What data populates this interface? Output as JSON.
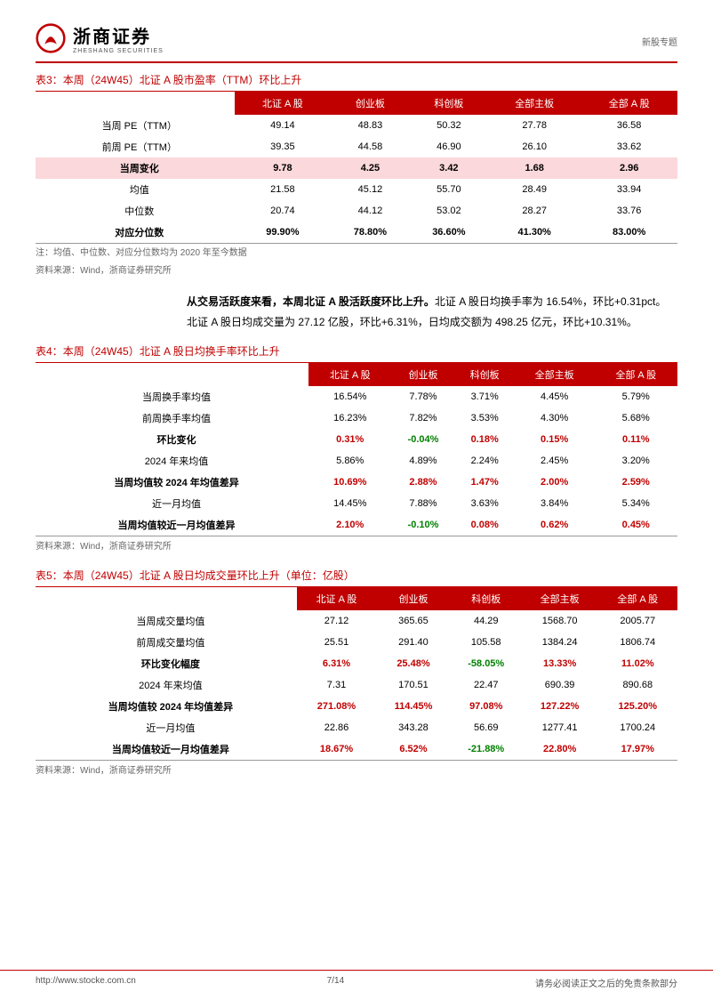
{
  "header": {
    "brand_cn": "浙商证券",
    "brand_en": "ZHESHANG SECURITIES",
    "topic": "新股专题",
    "brand_color": "#c00000"
  },
  "columns": [
    "北证 A 股",
    "创业板",
    "科创板",
    "全部主板",
    "全部 A 股"
  ],
  "table3": {
    "title_prefix": "表3：",
    "title": "本周（24W45）北证 A 股市盈率（TTM）环比上升",
    "rows": [
      {
        "label": "当周 PE（TTM）",
        "vals": [
          "49.14",
          "48.83",
          "50.32",
          "27.78",
          "36.58"
        ]
      },
      {
        "label": "前周 PE（TTM）",
        "vals": [
          "39.35",
          "44.58",
          "46.90",
          "26.10",
          "33.62"
        ]
      },
      {
        "label": "当周变化",
        "vals": [
          "9.78",
          "4.25",
          "3.42",
          "1.68",
          "2.96"
        ],
        "highlight": true,
        "bold": true
      },
      {
        "label": "均值",
        "vals": [
          "21.58",
          "45.12",
          "55.70",
          "28.49",
          "33.94"
        ]
      },
      {
        "label": "中位数",
        "vals": [
          "20.74",
          "44.12",
          "53.02",
          "28.27",
          "33.76"
        ]
      },
      {
        "label": "对应分位数",
        "vals": [
          "99.90%",
          "78.80%",
          "36.60%",
          "41.30%",
          "83.00%"
        ],
        "bold": true,
        "borderbot": true
      }
    ],
    "note": "注：均值、中位数、对应分位数均为 2020 年至今数据",
    "source": "资料来源：Wind，浙商证券研究所"
  },
  "para1": {
    "lead": "从交易活跃度来看，本周北证 A 股活跃度环比上升。",
    "rest": "北证 A 股日均换手率为 16.54%，环比+0.31pct。北证 A 股日均成交量为 27.12 亿股，环比+6.31%，日均成交额为 498.25 亿元，环比+10.31%。"
  },
  "table4": {
    "title_prefix": "表4：",
    "title": "本周（24W45）北证 A 股日均换手率环比上升",
    "rows": [
      {
        "label": "当周换手率均值",
        "vals": [
          "16.54%",
          "7.78%",
          "3.71%",
          "4.45%",
          "5.79%"
        ]
      },
      {
        "label": "前周换手率均值",
        "vals": [
          "16.23%",
          "7.82%",
          "3.53%",
          "4.30%",
          "5.68%"
        ]
      },
      {
        "label": "环比变化",
        "vals": [
          "0.31%",
          "-0.04%",
          "0.18%",
          "0.15%",
          "0.11%"
        ],
        "bold": true,
        "colored": true
      },
      {
        "label": "2024 年来均值",
        "vals": [
          "5.86%",
          "4.89%",
          "2.24%",
          "2.45%",
          "3.20%"
        ]
      },
      {
        "label": "当周均值较 2024 年均值差异",
        "vals": [
          "10.69%",
          "2.88%",
          "1.47%",
          "2.00%",
          "2.59%"
        ],
        "bold": true,
        "colored": true
      },
      {
        "label": "近一月均值",
        "vals": [
          "14.45%",
          "7.88%",
          "3.63%",
          "3.84%",
          "5.34%"
        ]
      },
      {
        "label": "当周均值较近一月均值差异",
        "vals": [
          "2.10%",
          "-0.10%",
          "0.08%",
          "0.62%",
          "0.45%"
        ],
        "bold": true,
        "colored": true,
        "borderbot": true
      }
    ],
    "source": "资料来源：Wind，浙商证券研究所"
  },
  "table5": {
    "title_prefix": "表5：",
    "title": "本周（24W45）北证 A 股日均成交量环比上升（单位：亿股）",
    "rows": [
      {
        "label": "当周成交量均值",
        "vals": [
          "27.12",
          "365.65",
          "44.29",
          "1568.70",
          "2005.77"
        ]
      },
      {
        "label": "前周成交量均值",
        "vals": [
          "25.51",
          "291.40",
          "105.58",
          "1384.24",
          "1806.74"
        ]
      },
      {
        "label": "环比变化幅度",
        "vals": [
          "6.31%",
          "25.48%",
          "-58.05%",
          "13.33%",
          "11.02%"
        ],
        "bold": true,
        "colored": true
      },
      {
        "label": "2024 年来均值",
        "vals": [
          "7.31",
          "170.51",
          "22.47",
          "690.39",
          "890.68"
        ]
      },
      {
        "label": "当周均值较 2024 年均值差异",
        "vals": [
          "271.08%",
          "114.45%",
          "97.08%",
          "127.22%",
          "125.20%"
        ],
        "bold": true,
        "colored": true
      },
      {
        "label": "近一月均值",
        "vals": [
          "22.86",
          "343.28",
          "56.69",
          "1277.41",
          "1700.24"
        ]
      },
      {
        "label": "当周均值较近一月均值差异",
        "vals": [
          "18.67%",
          "6.52%",
          "-21.88%",
          "22.80%",
          "17.97%"
        ],
        "bold": true,
        "colored": true,
        "borderbot": true
      }
    ],
    "source": "资料来源：Wind，浙商证券研究所"
  },
  "footer": {
    "url": "http://www.stocke.com.cn",
    "page": "7/14",
    "disclaimer": "请务必阅读正文之后的免责条款部分"
  },
  "style": {
    "header_red": "#c00000",
    "highlight_bg": "#fbd8db",
    "pos_color": "#c00000",
    "neg_color": "#008000"
  }
}
